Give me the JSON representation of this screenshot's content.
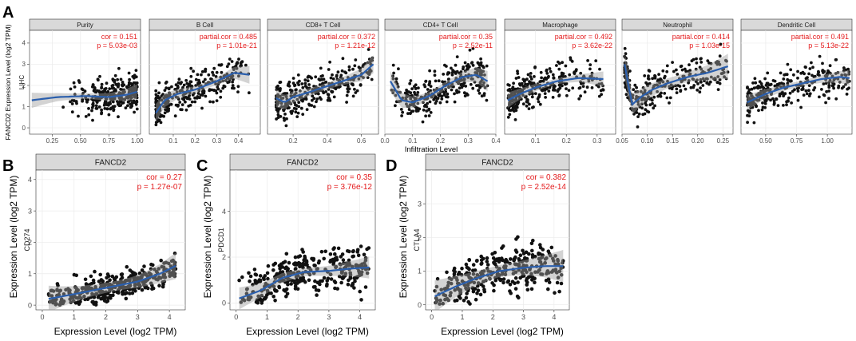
{
  "chart_data": [
    {
      "panel_letter": "A",
      "type": "scatter",
      "row_label": "LIHC",
      "ylabel": "FANCD2 Expression Level (log2 TPM)",
      "xlabel": "Infiltration Level",
      "yticks": [
        "0",
        "1",
        "2",
        "3",
        "4"
      ],
      "ylim": [
        -0.3,
        4.6
      ],
      "facets": [
        {
          "name": "Purity",
          "cor_label": "cor = 0.151",
          "p_label": "p = 5.03e-03",
          "xlim": [
            0.05,
            1.03
          ],
          "xticks": [
            0.25,
            0.5,
            0.75,
            1.0
          ],
          "xtick_labels": [
            "0.25",
            "0.50",
            "0.75",
            "1.00"
          ],
          "fit": [
            [
              0.07,
              1.3
            ],
            [
              0.3,
              1.45
            ],
            [
              0.55,
              1.5
            ],
            [
              0.75,
              1.45
            ],
            [
              0.9,
              1.55
            ],
            [
              1.0,
              1.7
            ]
          ],
          "band": 0.3
        },
        {
          "name": "B Cell",
          "cor_label": "partial.cor = 0.485",
          "p_label": "p = 1.01e-21",
          "xlim": [
            -0.01,
            0.5
          ],
          "xticks": [
            0.1,
            0.2,
            0.3,
            0.4
          ],
          "xtick_labels": [
            "0.1",
            "0.2",
            "0.3",
            "0.4"
          ],
          "fit": [
            [
              0.02,
              0.7
            ],
            [
              0.06,
              1.3
            ],
            [
              0.12,
              1.6
            ],
            [
              0.2,
              1.8
            ],
            [
              0.3,
              2.2
            ],
            [
              0.38,
              2.6
            ],
            [
              0.45,
              2.5
            ]
          ],
          "band": 0.35
        },
        {
          "name": "CD8+ T Cell",
          "cor_label": "partial.cor = 0.372",
          "p_label": "p = 1.21e-12",
          "xlim": [
            0.05,
            0.7
          ],
          "xticks": [
            0.2,
            0.4,
            0.6
          ],
          "xtick_labels": [
            "0.2",
            "0.4",
            "0.6"
          ],
          "fit": [
            [
              0.1,
              1.4
            ],
            [
              0.15,
              1.2
            ],
            [
              0.2,
              1.45
            ],
            [
              0.3,
              1.7
            ],
            [
              0.45,
              2.1
            ],
            [
              0.6,
              2.5
            ],
            [
              0.67,
              3.0
            ]
          ],
          "band": 0.35
        },
        {
          "name": "CD4+ T Cell",
          "cor_label": "partial.cor = 0.35",
          "p_label": "p = 2.52e-11",
          "xlim": [
            0.0,
            0.4
          ],
          "xticks": [
            0.0,
            0.1,
            0.2,
            0.3,
            0.4
          ],
          "xtick_labels": [
            "0.0",
            "0.1",
            "0.2",
            "0.3",
            "0.4"
          ],
          "fit": [
            [
              0.02,
              2.2
            ],
            [
              0.06,
              1.3
            ],
            [
              0.1,
              1.2
            ],
            [
              0.16,
              1.5
            ],
            [
              0.22,
              2.0
            ],
            [
              0.28,
              2.4
            ],
            [
              0.33,
              2.5
            ],
            [
              0.37,
              2.2
            ]
          ],
          "band": 0.4
        },
        {
          "name": "Macrophage",
          "cor_label": "partial.cor = 0.492",
          "p_label": "p = 3.62e-22",
          "xlim": [
            0.0,
            0.36
          ],
          "xticks": [
            0.1,
            0.2,
            0.3
          ],
          "xtick_labels": [
            "0.1",
            "0.2",
            "0.3"
          ],
          "fit": [
            [
              0.01,
              1.3
            ],
            [
              0.05,
              1.6
            ],
            [
              0.1,
              1.9
            ],
            [
              0.17,
              2.2
            ],
            [
              0.24,
              2.35
            ],
            [
              0.32,
              2.3
            ]
          ],
          "band": 0.3
        },
        {
          "name": "Neutrophil",
          "cor_label": "partial.cor = 0.414",
          "p_label": "p = 1.03e-15",
          "xlim": [
            0.05,
            0.27
          ],
          "xticks": [
            0.05,
            0.1,
            0.15,
            0.2,
            0.25
          ],
          "xtick_labels": [
            "0.05",
            "0.10",
            "0.15",
            "0.20",
            "0.25"
          ],
          "fit": [
            [
              0.055,
              3.0
            ],
            [
              0.07,
              1.1
            ],
            [
              0.09,
              1.5
            ],
            [
              0.11,
              1.8
            ],
            [
              0.14,
              2.1
            ],
            [
              0.18,
              2.4
            ],
            [
              0.22,
              2.6
            ],
            [
              0.26,
              2.9
            ]
          ],
          "band": 0.5
        },
        {
          "name": "Dendritic Cell",
          "cor_label": "partial.cor = 0.491",
          "p_label": "p = 5.13e-22",
          "xlim": [
            0.3,
            1.2
          ],
          "xticks": [
            0.5,
            0.75,
            1.0
          ],
          "xtick_labels": [
            "0.50",
            "0.75",
            "1.00"
          ],
          "fit": [
            [
              0.35,
              1.2
            ],
            [
              0.5,
              1.6
            ],
            [
              0.65,
              1.9
            ],
            [
              0.8,
              2.1
            ],
            [
              0.95,
              2.3
            ],
            [
              1.1,
              2.4
            ],
            [
              1.18,
              2.35
            ]
          ],
          "band": 0.3
        }
      ]
    },
    {
      "panel_letter": "B",
      "type": "scatter",
      "facet": "FANCD2",
      "gene": "CD274",
      "ylabel": "Expression Level (log2 TPM)",
      "xlabel": "Expression Level (log2 TPM)",
      "cor_label": "cor = 0.27",
      "p_label": "p = 1.27e-07",
      "xlim": [
        -0.2,
        4.5
      ],
      "xticks": [
        0,
        1,
        2,
        3,
        4
      ],
      "ylim": [
        -0.15,
        4.3
      ],
      "yticks": [
        0,
        1,
        2,
        3,
        4
      ],
      "fit": [
        [
          0.2,
          0.2
        ],
        [
          1.0,
          0.35
        ],
        [
          2.0,
          0.55
        ],
        [
          3.0,
          0.75
        ],
        [
          3.7,
          1.0
        ],
        [
          4.2,
          1.25
        ]
      ],
      "band": 0.35
    },
    {
      "panel_letter": "C",
      "type": "scatter",
      "facet": "FANCD2",
      "gene": "PDCD1",
      "ylabel": "Expression Level (log2 TPM)",
      "xlabel": "Expression Level (log2 TPM)",
      "cor_label": "cor = 0.35",
      "p_label": "p = 3.76e-12",
      "xlim": [
        -0.2,
        4.5
      ],
      "xticks": [
        0,
        1,
        2,
        3,
        4
      ],
      "ylim": [
        -0.3,
        5.8
      ],
      "yticks": [
        0,
        2,
        4
      ],
      "fit": [
        [
          0.1,
          0.2
        ],
        [
          0.8,
          0.55
        ],
        [
          1.5,
          1.1
        ],
        [
          2.2,
          1.35
        ],
        [
          3.0,
          1.4
        ],
        [
          3.7,
          1.5
        ],
        [
          4.3,
          1.55
        ]
      ],
      "band": 0.4
    },
    {
      "panel_letter": "D",
      "type": "scatter",
      "facet": "FANCD2",
      "gene": "CTLA4",
      "ylabel": "Expression Level (log2 TPM)",
      "xlabel": "Expression Level (log2 TPM)",
      "cor_label": "cor = 0.382",
      "p_label": "p = 2.52e-14",
      "xlim": [
        -0.2,
        4.5
      ],
      "xticks": [
        0,
        1,
        2,
        3,
        4
      ],
      "ylim": [
        -0.15,
        4.0
      ],
      "yticks": [
        0,
        1,
        2,
        3
      ],
      "fit": [
        [
          0.1,
          0.25
        ],
        [
          0.8,
          0.55
        ],
        [
          1.5,
          0.8
        ],
        [
          2.2,
          1.0
        ],
        [
          3.0,
          1.1
        ],
        [
          3.7,
          1.15
        ],
        [
          4.3,
          1.15
        ]
      ],
      "band": 0.4
    }
  ]
}
